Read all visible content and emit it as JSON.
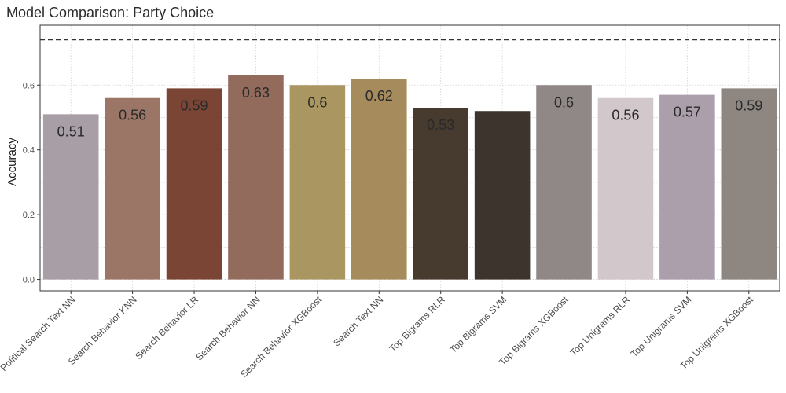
{
  "chart_data": {
    "type": "bar",
    "title": "Model Comparison: Party Choice",
    "xlabel": "",
    "ylabel": "Accuracy",
    "ylim": [
      -0.035,
      0.785
    ],
    "yticks": [
      "0.0",
      "0.2",
      "0.4",
      "0.6"
    ],
    "yticks_values": [
      0.0,
      0.2,
      0.4,
      0.6
    ],
    "grid": true,
    "reference_line": {
      "y": 0.74,
      "style": "dashed"
    },
    "categories": [
      "Political Search Text NN",
      "Search Behavior KNN",
      "Search Behavior LR",
      "Search Behavior NN",
      "Search Behavior XGBoost",
      "Search Text NN",
      "Top Bigrams RLR",
      "Top Bigrams SVM",
      "Top Bigrams XGBoost",
      "Top Unigrams RLR",
      "Top Unigrams SVM",
      "Top Unigrams XGBoost"
    ],
    "values": [
      0.51,
      0.56,
      0.59,
      0.63,
      0.6,
      0.62,
      0.53,
      0.52,
      0.6,
      0.56,
      0.57,
      0.59
    ],
    "data_labels": [
      "0.51",
      "0.56",
      "0.59",
      "0.63",
      "0.6",
      "0.62",
      "0.53",
      "",
      "0.6",
      "0.56",
      "0.57",
      "0.59"
    ],
    "colors": [
      "#a89ea6",
      "#9b7667",
      "#7b4535",
      "#926b5c",
      "#a99660",
      "#a68c5c",
      "#473a2e",
      "#3c342d",
      "#8f8887",
      "#d2c8cc",
      "#ab9fab",
      "#8e8781"
    ]
  }
}
